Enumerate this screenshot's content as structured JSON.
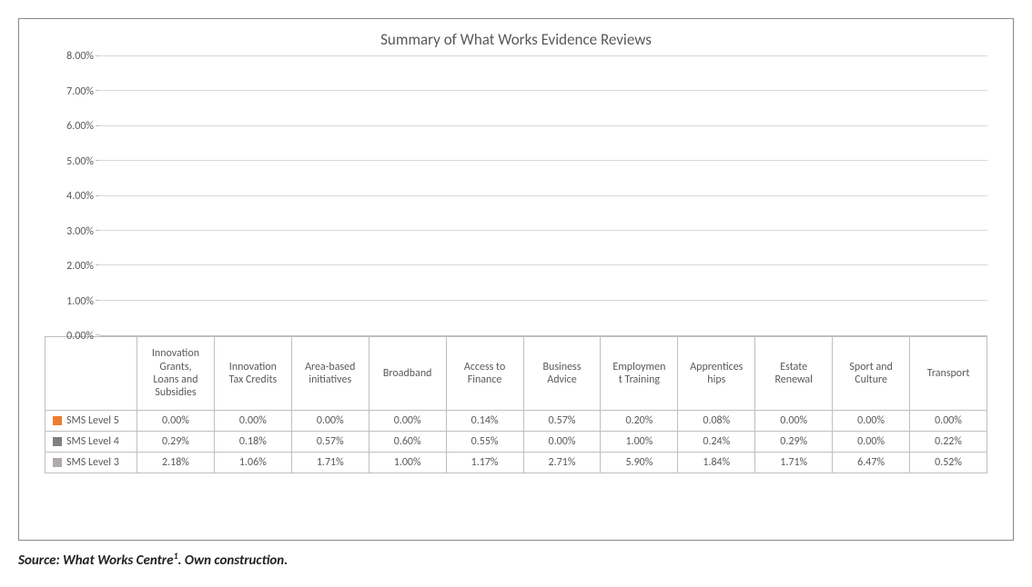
{
  "chart": {
    "type": "stacked-bar",
    "title": "Summary of What Works Evidence Reviews",
    "title_fontsize": 17,
    "title_color": "#595959",
    "background_color": "#ffffff",
    "border_color": "#888888",
    "grid_color": "#d9d9d9",
    "axis_color": "#bfbfbf",
    "label_fontsize": 12,
    "label_color": "#595959",
    "ylim": [
      0,
      8
    ],
    "ytick_step": 1,
    "yticks": [
      "0.00%",
      "1.00%",
      "2.00%",
      "3.00%",
      "4.00%",
      "5.00%",
      "6.00%",
      "7.00%",
      "8.00%"
    ],
    "categories": [
      "Innovation Grants, Loans and Subsidies",
      "Innovation Tax Credits",
      "Area-based initiatives",
      "Broadband",
      "Access to Finance",
      "Business Advice",
      "Employment Training",
      "Apprenticeships",
      "Estate Renewal",
      "Sport and Culture",
      "Transport"
    ],
    "category_labels_wrapped": [
      "Innovation\nGrants,\nLoans and\nSubsidies",
      "Innovation\nTax Credits",
      "Area-based\ninitiatives",
      "Broadband",
      "Access to\nFinance",
      "Business\nAdvice",
      "Employmen\nt Training",
      "Apprentices\nhips",
      "Estate\nRenewal",
      "Sport and\nCulture",
      "Transport"
    ],
    "series": [
      {
        "name": "SMS Level 5",
        "color": "#ed7d31",
        "values": [
          0.0,
          0.0,
          0.0,
          0.0,
          0.14,
          0.57,
          0.2,
          0.08,
          0.0,
          0.0,
          0.0
        ],
        "labels": [
          "0.00%",
          "0.00%",
          "0.00%",
          "0.00%",
          "0.14%",
          "0.57%",
          "0.20%",
          "0.08%",
          "0.00%",
          "0.00%",
          "0.00%"
        ]
      },
      {
        "name": "SMS Level 4",
        "color": "#7f7f7f",
        "values": [
          0.29,
          0.18,
          0.57,
          0.6,
          0.55,
          0.0,
          1.0,
          0.24,
          0.29,
          0.0,
          0.22
        ],
        "labels": [
          "0.29%",
          "0.18%",
          "0.57%",
          "0.60%",
          "0.55%",
          "0.00%",
          "1.00%",
          "0.24%",
          "0.29%",
          "0.00%",
          "0.22%"
        ]
      },
      {
        "name": "SMS Level 3",
        "color": "#afabab",
        "values": [
          2.18,
          1.06,
          1.71,
          1.0,
          1.17,
          2.71,
          5.9,
          1.84,
          1.71,
          6.47,
          0.52
        ],
        "labels": [
          "2.18%",
          "1.06%",
          "1.71%",
          "1.00%",
          "1.17%",
          "2.71%",
          "5.90%",
          "1.84%",
          "1.71%",
          "6.47%",
          "0.52%"
        ]
      }
    ],
    "bar_width_ratio": 0.52
  },
  "source_text": "Source: What Works Centre",
  "source_suffix": ". Own construction.",
  "source_sup": "1"
}
